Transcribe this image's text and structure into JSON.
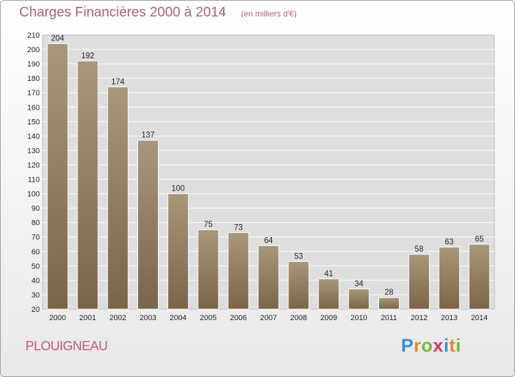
{
  "header": {
    "title": "Charges Financières 2000 à 2014",
    "subtitle": "(en milliers d'€)"
  },
  "footer": {
    "town": "PLOUIGNEAU",
    "logo": {
      "letters": [
        "P",
        "r",
        "o",
        "x",
        "i",
        "t",
        "i"
      ],
      "colors": [
        "#3a8fd0",
        "#e08a2a",
        "#7ab83a",
        "#d23a6a",
        "#3a8fd0",
        "#e08a2a",
        "#7ab83a"
      ]
    }
  },
  "chart_data": {
    "type": "bar",
    "title": "Charges Financières 2000 à 2014",
    "subtitle": "(en milliers d'€)",
    "categories": [
      "2000",
      "2001",
      "2002",
      "2003",
      "2004",
      "2005",
      "2006",
      "2007",
      "2008",
      "2009",
      "2010",
      "2011",
      "2012",
      "2013",
      "2014"
    ],
    "values": [
      204,
      192,
      174,
      137,
      100,
      75,
      73,
      64,
      53,
      41,
      34,
      28,
      58,
      63,
      65
    ],
    "ylim": [
      20,
      210
    ],
    "yticks": [
      20,
      30,
      40,
      50,
      60,
      70,
      80,
      90,
      100,
      110,
      120,
      130,
      140,
      150,
      160,
      170,
      180,
      190,
      200,
      210
    ],
    "grid": true,
    "legend": "none",
    "bar_color_top": "#a8987a",
    "bar_color_bottom": "#7a6548"
  }
}
